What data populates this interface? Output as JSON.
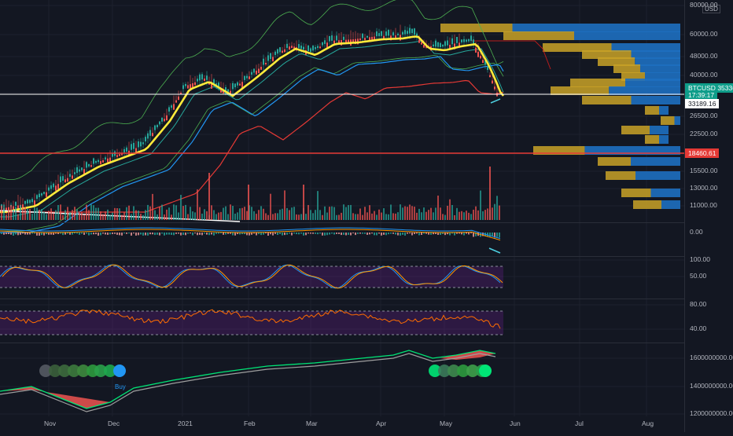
{
  "symbol": "BTCUSD",
  "currency": "USD",
  "price_axis": {
    "ticks": [
      "80000.00",
      "60000.00",
      "48000.00",
      "40000.00",
      "31000.00",
      "26500.00",
      "22500.00",
      "18500.00",
      "15500.00",
      "13000.00",
      "11000.00"
    ]
  },
  "price_tags": {
    "symbol_label": "BTCUSD",
    "last_price": "35336.26",
    "countdown": "17:39:17",
    "white_level": "33189.16",
    "red_level": "18460.61"
  },
  "macd_axis": [
    "0.00"
  ],
  "stoch_axis": [
    "100.00",
    "50.00"
  ],
  "rsi_axis": [
    "80.00",
    "40.00"
  ],
  "obv_axis": [
    "1600000000.00",
    "1400000000.00",
    "1200000000.00"
  ],
  "x_axis": [
    "Nov",
    "Dec",
    "2021",
    "Feb",
    "Mar",
    "Apr",
    "May",
    "Jun",
    "Jul",
    "Aug"
  ],
  "signals": {
    "buy_label": "Buy"
  },
  "colors": {
    "background": "#131722",
    "ema_fast": "#ffeb3b",
    "up": "#26a69a",
    "down": "#ef5350",
    "ma_long": "#e53935",
    "ma_mid": "#2196f3",
    "profile_up": "#2962ff",
    "profile_down": "#c9a227"
  }
}
